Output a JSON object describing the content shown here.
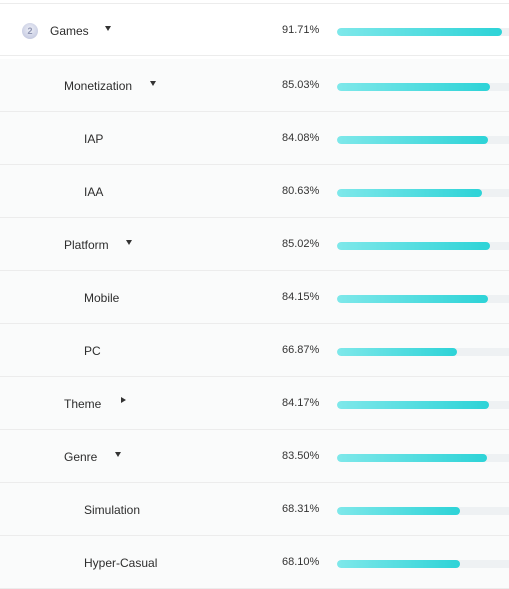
{
  "rows": [
    {
      "label": "Games",
      "percent": "91.71%",
      "value": 91.71,
      "indent": 0,
      "caret": "down",
      "rank": "2"
    },
    {
      "label": "Monetization",
      "percent": "85.03%",
      "value": 85.03,
      "indent": 1,
      "caret": "down"
    },
    {
      "label": "IAP",
      "percent": "84.08%",
      "value": 84.08,
      "indent": 2,
      "caret": ""
    },
    {
      "label": "IAA",
      "percent": "80.63%",
      "value": 80.63,
      "indent": 2,
      "caret": ""
    },
    {
      "label": "Platform",
      "percent": "85.02%",
      "value": 85.02,
      "indent": 1,
      "caret": "down"
    },
    {
      "label": "Mobile",
      "percent": "84.15%",
      "value": 84.15,
      "indent": 2,
      "caret": ""
    },
    {
      "label": "PC",
      "percent": "66.87%",
      "value": 66.87,
      "indent": 2,
      "caret": ""
    },
    {
      "label": "Theme",
      "percent": "84.17%",
      "value": 84.17,
      "indent": 1,
      "caret": "right"
    },
    {
      "label": "Genre",
      "percent": "83.50%",
      "value": 83.5,
      "indent": 1,
      "caret": "down"
    },
    {
      "label": "Simulation",
      "percent": "68.31%",
      "value": 68.31,
      "indent": 2,
      "caret": ""
    },
    {
      "label": "Hyper-Casual",
      "percent": "68.10%",
      "value": 68.1,
      "indent": 2,
      "caret": ""
    }
  ],
  "colors": {
    "bar_start": "#7ee8ea",
    "bar_end": "#2dd3d7",
    "track": "#eef1f3"
  }
}
